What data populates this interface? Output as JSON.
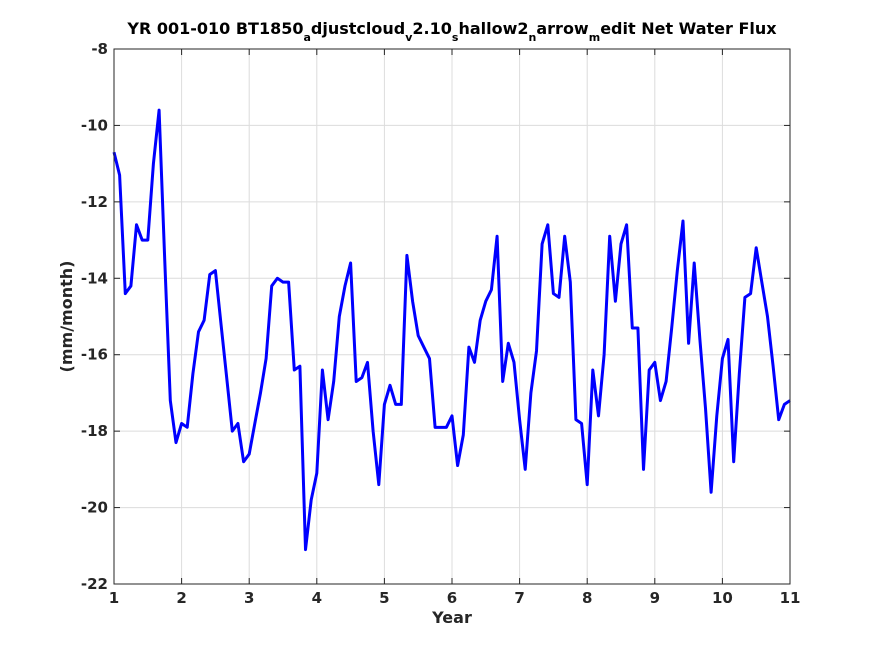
{
  "chart_data": {
    "type": "line",
    "title": {
      "parts": [
        {
          "text": "YR 001-010 BT1850",
          "sub": false
        },
        {
          "text": "a",
          "sub": true
        },
        {
          "text": "djustcloud",
          "sub": false
        },
        {
          "text": "v",
          "sub": true
        },
        {
          "text": "2.10",
          "sub": false
        },
        {
          "text": "s",
          "sub": true
        },
        {
          "text": "hallow2",
          "sub": false
        },
        {
          "text": "n",
          "sub": true
        },
        {
          "text": "arrow",
          "sub": false
        },
        {
          "text": "m",
          "sub": true
        },
        {
          "text": "edit Net Water Flux",
          "sub": false
        }
      ]
    },
    "xlabel": "Year",
    "ylabel": "(mm/month)",
    "xlim": [
      1,
      11
    ],
    "ylim": [
      -22,
      -8
    ],
    "xticks": [
      1,
      2,
      3,
      4,
      5,
      6,
      7,
      8,
      9,
      10,
      11
    ],
    "xtick_labels": [
      "1",
      "2",
      "3",
      "4",
      "5",
      "6",
      "7",
      "8",
      "9",
      "10",
      "11"
    ],
    "yticks": [
      -22,
      -20,
      -18,
      -16,
      -14,
      -12,
      -10,
      -8
    ],
    "ytick_labels": [
      "-22",
      "-20",
      "-18",
      "-16",
      "-14",
      "-12",
      "-10",
      "-8"
    ],
    "grid": true,
    "series": [
      {
        "color": "#0000ff",
        "x": [
          1.0,
          1.083,
          1.167,
          1.25,
          1.333,
          1.417,
          1.5,
          1.583,
          1.667,
          1.75,
          1.833,
          1.917,
          2.0,
          2.083,
          2.167,
          2.25,
          2.333,
          2.417,
          2.5,
          2.583,
          2.667,
          2.75,
          2.833,
          2.917,
          3.0,
          3.083,
          3.167,
          3.25,
          3.333,
          3.417,
          3.5,
          3.583,
          3.667,
          3.75,
          3.833,
          3.917,
          4.0,
          4.083,
          4.167,
          4.25,
          4.333,
          4.417,
          4.5,
          4.583,
          4.667,
          4.75,
          4.833,
          4.917,
          5.0,
          5.083,
          5.167,
          5.25,
          5.333,
          5.417,
          5.5,
          5.583,
          5.667,
          5.75,
          5.833,
          5.917,
          6.0,
          6.083,
          6.167,
          6.25,
          6.333,
          6.417,
          6.5,
          6.583,
          6.667,
          6.75,
          6.833,
          6.917,
          7.0,
          7.083,
          7.167,
          7.25,
          7.333,
          7.417,
          7.5,
          7.583,
          7.667,
          7.75,
          7.833,
          7.917,
          8.0,
          8.083,
          8.167,
          8.25,
          8.333,
          8.417,
          8.5,
          8.583,
          8.667,
          8.75,
          8.833,
          8.917,
          9.0,
          9.083,
          9.167,
          9.25,
          9.333,
          9.417,
          9.5,
          9.583,
          9.667,
          9.75,
          9.833,
          9.917,
          10.0,
          10.083,
          10.167,
          10.25,
          10.333,
          10.417,
          10.5,
          10.583,
          10.667,
          10.75,
          10.833,
          10.917,
          11.0
        ],
        "y": [
          -10.7,
          -11.3,
          -14.4,
          -14.2,
          -12.6,
          -13.0,
          -13.0,
          -11.0,
          -9.6,
          -13.5,
          -17.2,
          -18.3,
          -17.8,
          -17.9,
          -16.5,
          -15.4,
          -15.1,
          -13.9,
          -13.8,
          -15.2,
          -16.6,
          -18.0,
          -17.8,
          -18.8,
          -18.6,
          -17.8,
          -17.0,
          -16.1,
          -14.2,
          -14.0,
          -14.1,
          -14.1,
          -16.4,
          -16.3,
          -21.1,
          -19.8,
          -19.1,
          -16.4,
          -17.7,
          -16.7,
          -15.0,
          -14.2,
          -13.6,
          -16.7,
          -16.6,
          -16.2,
          -18.0,
          -19.4,
          -17.3,
          -16.8,
          -17.3,
          -17.3,
          -13.4,
          -14.6,
          -15.5,
          -15.8,
          -16.1,
          -17.9,
          -17.9,
          -17.9,
          -17.6,
          -18.9,
          -18.1,
          -15.8,
          -16.2,
          -15.1,
          -14.6,
          -14.3,
          -12.9,
          -16.7,
          -15.7,
          -16.2,
          -17.7,
          -19.0,
          -17.0,
          -15.9,
          -13.1,
          -12.6,
          -14.4,
          -14.5,
          -12.9,
          -14.1,
          -17.7,
          -17.8,
          -19.4,
          -16.4,
          -17.6,
          -16.0,
          -12.9,
          -14.6,
          -13.1,
          -12.6,
          -15.3,
          -15.3,
          -19.0,
          -16.4,
          -16.2,
          -17.2,
          -16.7,
          -15.3,
          -13.8,
          -12.5,
          -15.7,
          -13.6,
          -15.6,
          -17.4,
          -19.6,
          -17.6,
          -16.1,
          -15.6,
          -18.8,
          -16.5,
          -14.5,
          -14.4,
          -13.2,
          -14.1,
          -15.0,
          -16.3,
          -17.7,
          -17.3,
          -17.2
        ]
      }
    ]
  }
}
